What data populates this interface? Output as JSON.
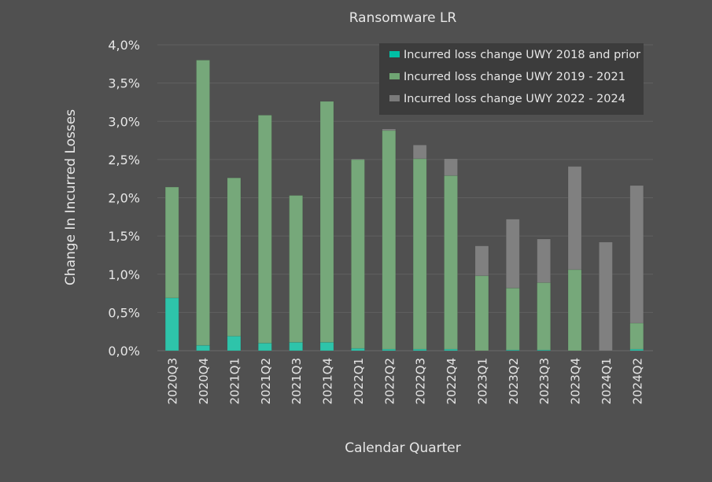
{
  "chart_data": {
    "type": "bar",
    "stacked": true,
    "title": "Ransomware LR",
    "xlabel": "Calendar Quarter",
    "ylabel": "Change In Incurred Losses",
    "ylim": [
      0,
      4.0
    ],
    "yticks": [
      "0,0%",
      "0,5%",
      "1,0%",
      "1,5%",
      "2,0%",
      "2,5%",
      "3,0%",
      "3,5%",
      "4,0%"
    ],
    "ytick_values": [
      0,
      0.5,
      1.0,
      1.5,
      2.0,
      2.5,
      3.0,
      3.5,
      4.0
    ],
    "grid": true,
    "legend_position": "top-right",
    "categories": [
      "2020Q3",
      "2020Q4",
      "2021Q1",
      "2021Q2",
      "2021Q3",
      "2021Q4",
      "2022Q1",
      "2022Q2",
      "2022Q3",
      "2022Q4",
      "2023Q1",
      "2023Q2",
      "2023Q3",
      "2023Q4",
      "2024Q1",
      "2024Q2"
    ],
    "series": [
      {
        "name": "Incurred loss change UWY 2018 and prior",
        "color": "#2ec4aa",
        "legend_color": "#00bfa5",
        "values": [
          0.69,
          0.07,
          0.19,
          0.1,
          0.11,
          0.11,
          0.03,
          0.02,
          0.02,
          0.02,
          0.0,
          0.01,
          0.01,
          0.0,
          0.0,
          0.02
        ]
      },
      {
        "name": "Incurred loss change UWY 2019 - 2021",
        "color": "#76a87a",
        "legend_color": "#6fa573",
        "values": [
          1.45,
          3.73,
          2.07,
          2.98,
          1.92,
          3.15,
          2.47,
          2.86,
          2.49,
          2.27,
          0.98,
          0.81,
          0.88,
          1.06,
          0.0,
          0.34
        ]
      },
      {
        "name": "Incurred loss change UWY 2022 - 2024",
        "color": "#808080",
        "legend_color": "#7a7a7a",
        "values": [
          0.0,
          0.0,
          0.0,
          0.0,
          0.0,
          0.0,
          0.01,
          0.02,
          0.18,
          0.22,
          0.39,
          0.9,
          0.57,
          1.35,
          1.42,
          1.8
        ]
      }
    ]
  }
}
